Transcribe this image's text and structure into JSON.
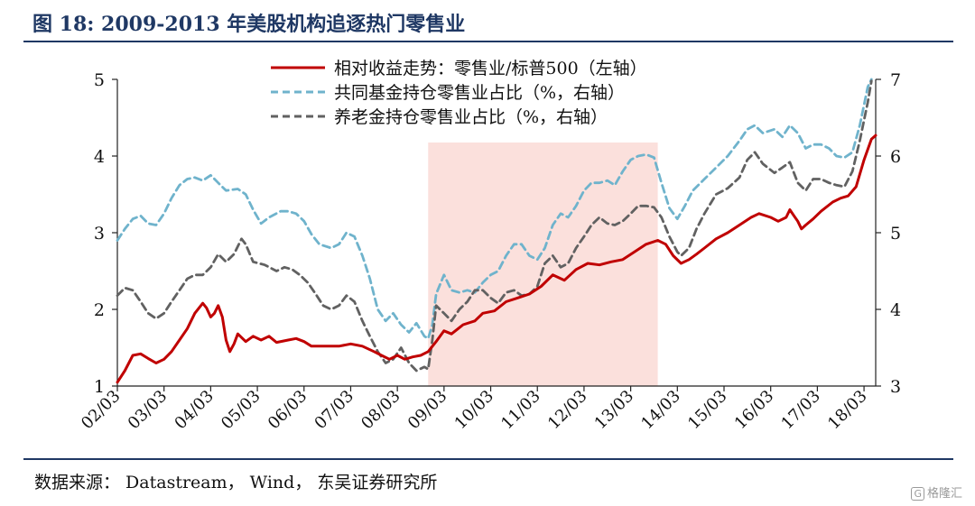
{
  "figure": {
    "title": "图 18:  2009-2013 年美股机构追逐热门零售业",
    "source": "数据来源：  Datastream，  Wind，  东吴证券研究所",
    "watermark": "格隆汇"
  },
  "chart_data": {
    "type": "line",
    "x_ticks": [
      "02/03",
      "03/03",
      "04/03",
      "05/03",
      "06/03",
      "07/03",
      "08/03",
      "09/03",
      "10/03",
      "11/03",
      "12/03",
      "13/03",
      "14/03",
      "15/03",
      "16/03",
      "17/03",
      "18/03"
    ],
    "x_start": 2002.17,
    "x_end": 2018.42,
    "left_axis": {
      "ylim": [
        1,
        5
      ],
      "ticks": [
        1,
        2,
        3,
        4,
        5
      ]
    },
    "right_axis": {
      "ylim": [
        3,
        7
      ],
      "ticks": [
        3,
        4,
        5,
        6,
        7
      ]
    },
    "highlight": {
      "x_from": 2008.83,
      "x_to": 2013.75,
      "color": "#fbe0dc"
    },
    "legend_position": "top",
    "series": [
      {
        "name": "相对收益走势：零售业/标普500（左轴）",
        "axis": "left",
        "color": "#c00000",
        "dash": "solid",
        "points": [
          [
            2002.17,
            1.05
          ],
          [
            2002.33,
            1.2
          ],
          [
            2002.5,
            1.4
          ],
          [
            2002.67,
            1.42
          ],
          [
            2002.83,
            1.36
          ],
          [
            2003.0,
            1.3
          ],
          [
            2003.17,
            1.35
          ],
          [
            2003.33,
            1.45
          ],
          [
            2003.5,
            1.6
          ],
          [
            2003.67,
            1.75
          ],
          [
            2003.83,
            1.95
          ],
          [
            2004.0,
            2.08
          ],
          [
            2004.08,
            2.02
          ],
          [
            2004.17,
            1.9
          ],
          [
            2004.25,
            1.95
          ],
          [
            2004.33,
            2.05
          ],
          [
            2004.42,
            1.9
          ],
          [
            2004.5,
            1.6
          ],
          [
            2004.58,
            1.45
          ],
          [
            2004.67,
            1.55
          ],
          [
            2004.75,
            1.68
          ],
          [
            2004.92,
            1.58
          ],
          [
            2005.08,
            1.65
          ],
          [
            2005.25,
            1.6
          ],
          [
            2005.42,
            1.65
          ],
          [
            2005.58,
            1.57
          ],
          [
            2005.83,
            1.6
          ],
          [
            2006.0,
            1.62
          ],
          [
            2006.17,
            1.58
          ],
          [
            2006.33,
            1.52
          ],
          [
            2006.67,
            1.52
          ],
          [
            2006.92,
            1.52
          ],
          [
            2007.17,
            1.55
          ],
          [
            2007.42,
            1.52
          ],
          [
            2007.67,
            1.45
          ],
          [
            2007.83,
            1.4
          ],
          [
            2008.0,
            1.35
          ],
          [
            2008.17,
            1.4
          ],
          [
            2008.33,
            1.35
          ],
          [
            2008.5,
            1.38
          ],
          [
            2008.67,
            1.4
          ],
          [
            2008.83,
            1.45
          ],
          [
            2009.0,
            1.58
          ],
          [
            2009.17,
            1.72
          ],
          [
            2009.33,
            1.68
          ],
          [
            2009.58,
            1.8
          ],
          [
            2009.83,
            1.85
          ],
          [
            2010.0,
            1.95
          ],
          [
            2010.25,
            1.98
          ],
          [
            2010.5,
            2.1
          ],
          [
            2010.75,
            2.15
          ],
          [
            2011.0,
            2.2
          ],
          [
            2011.25,
            2.3
          ],
          [
            2011.5,
            2.45
          ],
          [
            2011.75,
            2.38
          ],
          [
            2012.0,
            2.52
          ],
          [
            2012.25,
            2.6
          ],
          [
            2012.5,
            2.58
          ],
          [
            2012.75,
            2.62
          ],
          [
            2013.0,
            2.65
          ],
          [
            2013.25,
            2.75
          ],
          [
            2013.5,
            2.85
          ],
          [
            2013.75,
            2.9
          ],
          [
            2013.92,
            2.85
          ],
          [
            2014.08,
            2.7
          ],
          [
            2014.25,
            2.6
          ],
          [
            2014.42,
            2.65
          ],
          [
            2014.58,
            2.72
          ],
          [
            2014.75,
            2.8
          ],
          [
            2015.0,
            2.92
          ],
          [
            2015.25,
            3.0
          ],
          [
            2015.5,
            3.1
          ],
          [
            2015.75,
            3.2
          ],
          [
            2015.92,
            3.25
          ],
          [
            2016.17,
            3.2
          ],
          [
            2016.33,
            3.15
          ],
          [
            2016.5,
            3.2
          ],
          [
            2016.58,
            3.3
          ],
          [
            2016.67,
            3.22
          ],
          [
            2016.75,
            3.15
          ],
          [
            2016.83,
            3.05
          ],
          [
            2016.92,
            3.1
          ],
          [
            2017.08,
            3.18
          ],
          [
            2017.25,
            3.28
          ],
          [
            2017.5,
            3.4
          ],
          [
            2017.67,
            3.45
          ],
          [
            2017.83,
            3.48
          ],
          [
            2018.0,
            3.6
          ],
          [
            2018.17,
            3.95
          ],
          [
            2018.33,
            4.22
          ],
          [
            2018.42,
            4.27
          ]
        ]
      },
      {
        "name": "共同基金持仓零售业占比（%，右轴）",
        "axis": "right",
        "color": "#6fb3cc",
        "dash": "8,5",
        "points": [
          [
            2002.17,
            4.9
          ],
          [
            2002.33,
            5.05
          ],
          [
            2002.5,
            5.18
          ],
          [
            2002.67,
            5.22
          ],
          [
            2002.83,
            5.12
          ],
          [
            2003.0,
            5.1
          ],
          [
            2003.17,
            5.25
          ],
          [
            2003.33,
            5.45
          ],
          [
            2003.5,
            5.62
          ],
          [
            2003.67,
            5.7
          ],
          [
            2003.83,
            5.72
          ],
          [
            2004.0,
            5.68
          ],
          [
            2004.17,
            5.75
          ],
          [
            2004.33,
            5.65
          ],
          [
            2004.5,
            5.55
          ],
          [
            2004.75,
            5.57
          ],
          [
            2004.92,
            5.5
          ],
          [
            2005.08,
            5.3
          ],
          [
            2005.25,
            5.12
          ],
          [
            2005.42,
            5.2
          ],
          [
            2005.67,
            5.28
          ],
          [
            2005.83,
            5.28
          ],
          [
            2006.0,
            5.25
          ],
          [
            2006.17,
            5.15
          ],
          [
            2006.33,
            4.98
          ],
          [
            2006.5,
            4.85
          ],
          [
            2006.75,
            4.8
          ],
          [
            2006.92,
            4.85
          ],
          [
            2007.08,
            5.0
          ],
          [
            2007.25,
            4.95
          ],
          [
            2007.42,
            4.7
          ],
          [
            2007.58,
            4.4
          ],
          [
            2007.75,
            4.0
          ],
          [
            2007.92,
            3.85
          ],
          [
            2008.08,
            3.95
          ],
          [
            2008.25,
            3.8
          ],
          [
            2008.42,
            3.7
          ],
          [
            2008.58,
            3.82
          ],
          [
            2008.75,
            3.65
          ],
          [
            2008.83,
            3.62
          ],
          [
            2008.92,
            3.8
          ],
          [
            2009.0,
            4.2
          ],
          [
            2009.17,
            4.45
          ],
          [
            2009.33,
            4.25
          ],
          [
            2009.5,
            4.22
          ],
          [
            2009.67,
            4.25
          ],
          [
            2009.83,
            4.22
          ],
          [
            2010.0,
            4.35
          ],
          [
            2010.17,
            4.45
          ],
          [
            2010.33,
            4.5
          ],
          [
            2010.5,
            4.7
          ],
          [
            2010.67,
            4.85
          ],
          [
            2010.83,
            4.85
          ],
          [
            2011.0,
            4.7
          ],
          [
            2011.17,
            4.65
          ],
          [
            2011.33,
            4.8
          ],
          [
            2011.5,
            5.1
          ],
          [
            2011.67,
            5.25
          ],
          [
            2011.83,
            5.2
          ],
          [
            2012.0,
            5.35
          ],
          [
            2012.17,
            5.55
          ],
          [
            2012.33,
            5.65
          ],
          [
            2012.5,
            5.65
          ],
          [
            2012.67,
            5.68
          ],
          [
            2012.83,
            5.62
          ],
          [
            2013.0,
            5.8
          ],
          [
            2013.17,
            5.95
          ],
          [
            2013.33,
            6.0
          ],
          [
            2013.5,
            6.02
          ],
          [
            2013.67,
            5.98
          ],
          [
            2013.83,
            5.65
          ],
          [
            2014.0,
            5.32
          ],
          [
            2014.17,
            5.18
          ],
          [
            2014.33,
            5.35
          ],
          [
            2014.5,
            5.55
          ],
          [
            2014.75,
            5.7
          ],
          [
            2015.0,
            5.85
          ],
          [
            2015.25,
            6.0
          ],
          [
            2015.5,
            6.2
          ],
          [
            2015.67,
            6.35
          ],
          [
            2015.83,
            6.4
          ],
          [
            2016.0,
            6.3
          ],
          [
            2016.25,
            6.35
          ],
          [
            2016.42,
            6.25
          ],
          [
            2016.58,
            6.4
          ],
          [
            2016.75,
            6.3
          ],
          [
            2016.92,
            6.1
          ],
          [
            2017.08,
            6.15
          ],
          [
            2017.25,
            6.15
          ],
          [
            2017.42,
            6.1
          ],
          [
            2017.58,
            6.0
          ],
          [
            2017.75,
            5.98
          ],
          [
            2017.92,
            6.05
          ],
          [
            2018.08,
            6.4
          ],
          [
            2018.25,
            6.9
          ],
          [
            2018.33,
            7.0
          ]
        ]
      },
      {
        "name": "养老金持仓零售业占比（%，右轴）",
        "axis": "right",
        "color": "#616161",
        "dash": "8,5",
        "points": [
          [
            2002.17,
            4.18
          ],
          [
            2002.33,
            4.28
          ],
          [
            2002.5,
            4.25
          ],
          [
            2002.67,
            4.1
          ],
          [
            2002.83,
            3.95
          ],
          [
            2003.0,
            3.88
          ],
          [
            2003.17,
            3.95
          ],
          [
            2003.33,
            4.1
          ],
          [
            2003.5,
            4.25
          ],
          [
            2003.67,
            4.4
          ],
          [
            2003.83,
            4.45
          ],
          [
            2004.0,
            4.45
          ],
          [
            2004.17,
            4.55
          ],
          [
            2004.33,
            4.72
          ],
          [
            2004.5,
            4.62
          ],
          [
            2004.67,
            4.72
          ],
          [
            2004.83,
            4.92
          ],
          [
            2004.92,
            4.85
          ],
          [
            2005.08,
            4.62
          ],
          [
            2005.33,
            4.58
          ],
          [
            2005.58,
            4.5
          ],
          [
            2005.75,
            4.55
          ],
          [
            2005.92,
            4.52
          ],
          [
            2006.08,
            4.45
          ],
          [
            2006.25,
            4.35
          ],
          [
            2006.42,
            4.2
          ],
          [
            2006.58,
            4.05
          ],
          [
            2006.75,
            4.0
          ],
          [
            2006.92,
            4.05
          ],
          [
            2007.08,
            4.18
          ],
          [
            2007.25,
            4.1
          ],
          [
            2007.42,
            3.85
          ],
          [
            2007.58,
            3.65
          ],
          [
            2007.75,
            3.45
          ],
          [
            2007.92,
            3.3
          ],
          [
            2008.08,
            3.35
          ],
          [
            2008.25,
            3.5
          ],
          [
            2008.42,
            3.3
          ],
          [
            2008.58,
            3.2
          ],
          [
            2008.75,
            3.25
          ],
          [
            2008.83,
            3.22
          ],
          [
            2008.92,
            3.6
          ],
          [
            2009.0,
            4.05
          ],
          [
            2009.17,
            3.95
          ],
          [
            2009.33,
            3.85
          ],
          [
            2009.5,
            4.0
          ],
          [
            2009.67,
            4.1
          ],
          [
            2009.83,
            4.25
          ],
          [
            2010.0,
            4.25
          ],
          [
            2010.17,
            4.15
          ],
          [
            2010.33,
            4.08
          ],
          [
            2010.5,
            4.22
          ],
          [
            2010.67,
            4.25
          ],
          [
            2010.83,
            4.18
          ],
          [
            2011.0,
            4.2
          ],
          [
            2011.17,
            4.3
          ],
          [
            2011.33,
            4.6
          ],
          [
            2011.5,
            4.7
          ],
          [
            2011.67,
            4.55
          ],
          [
            2011.83,
            4.6
          ],
          [
            2012.0,
            4.8
          ],
          [
            2012.17,
            4.95
          ],
          [
            2012.33,
            5.1
          ],
          [
            2012.5,
            5.2
          ],
          [
            2012.67,
            5.12
          ],
          [
            2012.83,
            5.1
          ],
          [
            2013.0,
            5.15
          ],
          [
            2013.17,
            5.25
          ],
          [
            2013.33,
            5.35
          ],
          [
            2013.5,
            5.35
          ],
          [
            2013.67,
            5.33
          ],
          [
            2013.83,
            5.2
          ],
          [
            2014.0,
            4.95
          ],
          [
            2014.17,
            4.75
          ],
          [
            2014.25,
            4.7
          ],
          [
            2014.42,
            4.8
          ],
          [
            2014.58,
            5.05
          ],
          [
            2014.75,
            5.25
          ],
          [
            2015.0,
            5.5
          ],
          [
            2015.25,
            5.58
          ],
          [
            2015.5,
            5.72
          ],
          [
            2015.67,
            5.95
          ],
          [
            2015.83,
            6.05
          ],
          [
            2016.0,
            5.9
          ],
          [
            2016.25,
            5.78
          ],
          [
            2016.42,
            5.85
          ],
          [
            2016.58,
            5.92
          ],
          [
            2016.75,
            5.65
          ],
          [
            2016.92,
            5.55
          ],
          [
            2017.08,
            5.7
          ],
          [
            2017.25,
            5.7
          ],
          [
            2017.42,
            5.65
          ],
          [
            2017.58,
            5.62
          ],
          [
            2017.75,
            5.6
          ],
          [
            2017.92,
            5.8
          ],
          [
            2018.08,
            6.2
          ],
          [
            2018.25,
            6.7
          ],
          [
            2018.33,
            6.98
          ]
        ]
      }
    ]
  }
}
